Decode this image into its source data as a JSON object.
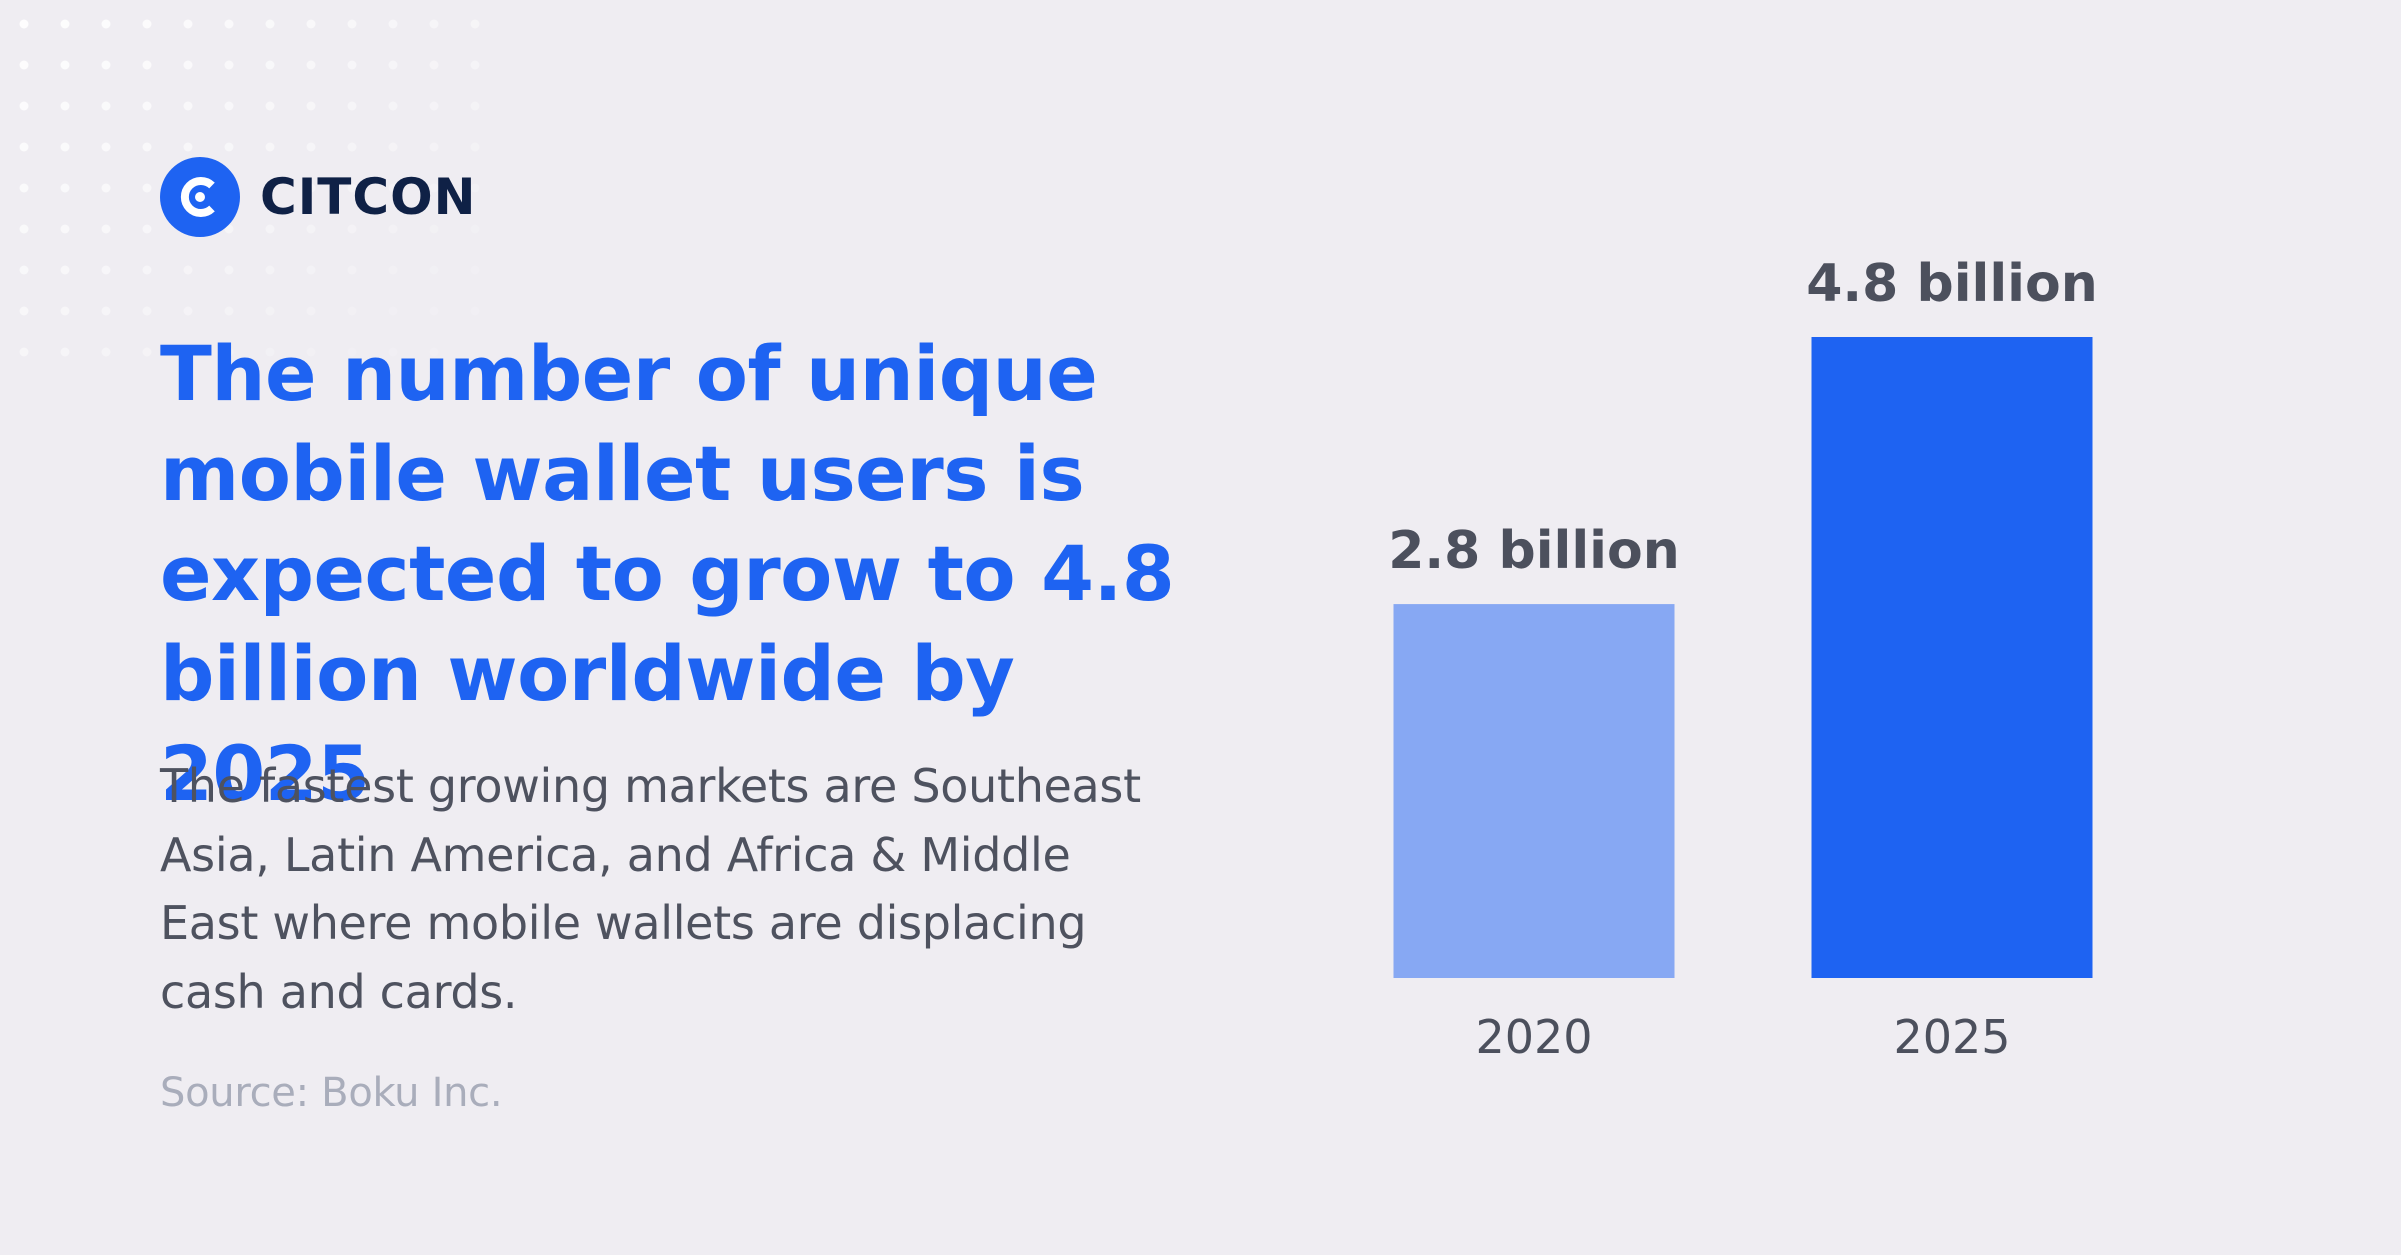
{
  "brand": {
    "name": "CITCON",
    "logo_glyph": "C",
    "colors": {
      "primary": "#1e63f2",
      "light": "#87a8f3",
      "dark": "#0f2146"
    }
  },
  "headline": "The number of unique mobile wallet users is expected to grow to 4.8 billion worldwide by 2025",
  "body": "The fastest growing markets are Southeast Asia, Latin America, and Africa & Middle East where mobile wallets are displacing cash and cards.",
  "source": "Source: Boku Inc.",
  "chart_data": {
    "type": "bar",
    "categories": [
      "2020",
      "2025"
    ],
    "values": [
      2.8,
      4.8
    ],
    "value_labels": [
      "2.8 billion",
      "4.8 billion"
    ],
    "bar_colors": [
      "#87a8f3",
      "#1e63f2"
    ],
    "unit": "billion",
    "title": "",
    "xlabel": "",
    "ylabel": "",
    "ylim": [
      0,
      4.8
    ],
    "grid": false,
    "legend": "none"
  }
}
